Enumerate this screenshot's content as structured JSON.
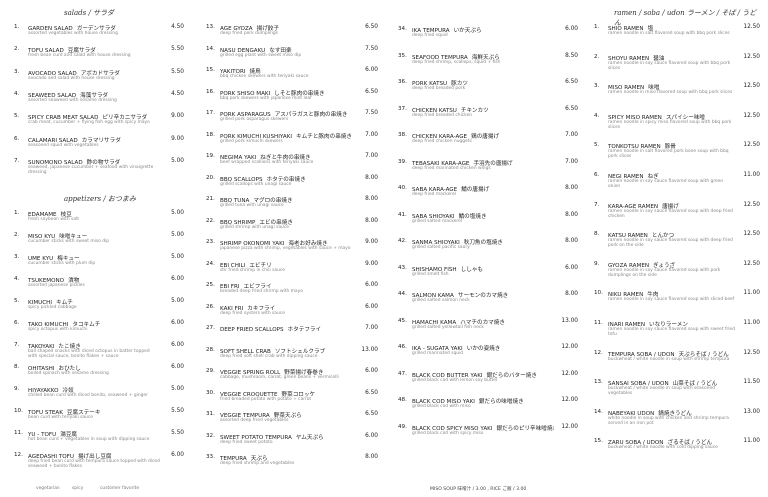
{
  "columns": [
    {
      "sections": [
        {
          "title": "salads / サラダ",
          "items": [
            {
              "number": "1.",
              "name": "GARDEN SALAD",
              "japanese": "ガーデンサラダ",
              "price": "4.50",
              "description": "assorted vegetables with house dressing"
            },
            {
              "number": "2.",
              "name": "TOFU SALAD",
              "japanese": "豆腐サラダ",
              "price": "5.50",
              "description": "fresh bean curd and salad with house dressing"
            },
            {
              "number": "3.",
              "name": "AVOCADO SALAD",
              "japanese": "アボカドサラダ",
              "price": "5.50",
              "description": "avocado and salad with house dressing"
            },
            {
              "number": "4.",
              "name": "SEAWEED SALAD",
              "japanese": "海藻サラダ",
              "price": "4.50",
              "description": "assorted seaweed with sesame dressing"
            },
            {
              "number": "5.",
              "name": "SPICY CRAB MEAT SALAD",
              "japanese": "ピリ辛カニサラダ",
              "price": "9.00",
              "description": "crab meat, cucumber + flying fish egg with spicy mayo"
            },
            {
              "number": "6.",
              "name": "CALAMARI SALAD",
              "japanese": "カラマリサラダ",
              "price": "9.00",
              "description": "seasoned squid with vegetables"
            },
            {
              "number": "7.",
              "name": "SUNOMONO SALAD",
              "japanese": "酢の物サラダ",
              "price": "5.00",
              "description": "seaweed, japanese cucumber + seafood with vinaigrette dressing"
            }
          ]
        },
        {
          "title": "appetizers / おつまみ",
          "items": [
            {
              "number": "1.",
              "name": "EDAMAME",
              "japanese": "枝豆",
              "price": "5.00",
              "description": "fresh soybean with salt"
            },
            {
              "number": "2.",
              "name": "MISO KYU",
              "japanese": "味噌キュー",
              "price": "5.00",
              "description": "cucumber sticks with sweet miso dip"
            },
            {
              "number": "3.",
              "name": "UME KYU",
              "japanese": "梅キュー",
              "price": "5.00",
              "description": "cucumber sticks with plum dip"
            },
            {
              "number": "4.",
              "name": "TSUKEMONO",
              "japanese": "漬物",
              "price": "6.00",
              "description": "assorted japanese pickles"
            },
            {
              "number": "5.",
              "name": "KIMUCHI",
              "japanese": "キムチ",
              "price": "5.00",
              "description": "spicy pickled cabbage"
            },
            {
              "number": "6.",
              "name": "TAKO KIMUCHI",
              "japanese": "タコキムチ",
              "price": "6.00",
              "description": "spicy octopus with kimuchi"
            },
            {
              "number": "7.",
              "name": "TAKOYAKI",
              "japanese": "たこ焼き",
              "price": "6.00",
              "description": "ball shaped snacks with diced octopus in batter topped with special sauce, bonito flakes + sauce"
            },
            {
              "number": "8.",
              "name": "OHITASHI",
              "japanese": "おひたし",
              "price": "6.00",
              "description": "boiled spinach with sesame dressing"
            },
            {
              "number": "9.",
              "name": "HIYAYAKKO",
              "japanese": "冷奴",
              "price": "5.00",
              "description": "chilled bean curd with diced bonito, seaweed + ginger"
            },
            {
              "number": "10.",
              "name": "TOFU STEAK",
              "japanese": "豆腐ステーキ",
              "price": "5.50",
              "description": "bean curd with teriyaki sauce"
            },
            {
              "number": "11.",
              "name": "YU - TOFU",
              "japanese": "湯豆腐",
              "price": "5.50",
              "description": "hot bean curd + vegetables in soup with dipping sauce"
            },
            {
              "number": "12.",
              "name": "AGEDASHI TOFU",
              "japanese": "揚げ出し豆腐",
              "price": "6.00",
              "description": "deep fried bean curd with tempura sauce topped with diced seaweed + bonito flakes"
            }
          ]
        }
      ]
    },
    {
      "sections": [
        {
          "items": [
            {
              "number": "13.",
              "name": "AGE GYOZA",
              "japanese": "揚げ餃子",
              "price": "6.50",
              "description": "deep fried pork dumplings"
            },
            {
              "number": "14.",
              "name": "NASU DENGAKU",
              "japanese": "なす田楽",
              "price": "7.50",
              "description": "grilled egg plant with sweet miso dip"
            },
            {
              "number": "15.",
              "name": "YAKITORI",
              "japanese": "焼鳥",
              "price": "6.00",
              "description": "bbq chicken skewers with teriyaki sauce"
            },
            {
              "number": "16.",
              "name": "PORK SHISO MAKI",
              "japanese": "しそと豚肉の串焼き",
              "price": "6.50",
              "description": "bbq pork skewers with japanese mint leaf"
            },
            {
              "number": "17.",
              "name": "PORK ASPARAGUS",
              "japanese": "アスパラガスと豚肉の串焼き",
              "price": "7.50",
              "description": "grilled pork asparagus skewers"
            },
            {
              "number": "18.",
              "name": "PORK KIMUCHI KUSHIYAKI",
              "japanese": "キムチと豚肉の串焼き",
              "price": "7.00",
              "description": "grilled pork kimuchi skewers"
            },
            {
              "number": "19.",
              "name": "NEGIMA YAKI",
              "japanese": "ねぎと牛肉の串焼き",
              "price": "7.00",
              "description": "beef wrapped scallions with teriyaki sauce"
            },
            {
              "number": "20.",
              "name": "BBQ SCALLOPS",
              "japanese": "ホタテの串焼き",
              "price": "8.00",
              "description": "grilled scallops with unagi sauce"
            },
            {
              "number": "21.",
              "name": "BBQ TUNA",
              "japanese": "マグロの串焼き",
              "price": "8.00",
              "description": "grilled tuna with unagi sauce"
            },
            {
              "number": "22.",
              "name": "BBQ SHRIMP",
              "japanese": "エビの串焼き",
              "price": "8.00",
              "description": "grilled shrimp with unagi sauce"
            },
            {
              "number": "23.",
              "name": "SHRIMP OKONOMI YAKI",
              "japanese": "海老お好み焼き",
              "price": "9.00",
              "description": "japanese pizza with shrimp, vegetables with sauce + mayo"
            },
            {
              "number": "24.",
              "name": "EBI CHILI",
              "japanese": "エビチリ",
              "price": "9.00",
              "description": "stir fried shrimp in chili sauce"
            },
            {
              "number": "25.",
              "name": "EBI FRI",
              "japanese": "エビフライ",
              "price": "6.00",
              "description": "breaded deep fried shrimp with mayo"
            },
            {
              "number": "26.",
              "name": "KAKI FRI",
              "japanese": "カキフライ",
              "price": "6.00",
              "description": "deep fried oysters with sauce"
            },
            {
              "number": "27.",
              "name": "DEEP FRIED SCALLOPS",
              "japanese": "ホタテフライ",
              "price": "7.00",
              "description": ""
            },
            {
              "number": "28.",
              "name": "SOFT SHELL CRAB",
              "japanese": "ソフトシェルクラブ",
              "price": "13.00",
              "description": "deep fried soft shell crab with dipping sauce"
            },
            {
              "number": "29.",
              "name": "VEGGIE SPRING ROLL",
              "japanese": "野菜揚げ春巻き",
              "price": "6.00",
              "description": "cabbage, mushroom, carrot, green beans + vermicelli"
            },
            {
              "number": "30.",
              "name": "VEGGIE CROQUETTE",
              "japanese": "野菜コロッケ",
              "price": "6.50",
              "description": "fried breaded potato with potato + carrot"
            },
            {
              "number": "31.",
              "name": "VEGGIE TEMPURA",
              "japanese": "野菜天ぷら",
              "price": "6.50",
              "description": "assorted deep fried vegetables"
            },
            {
              "number": "32.",
              "name": "SWEET POTATO TEMPURA",
              "japanese": "ヤム天ぷら",
              "price": "6.00",
              "description": "deep fried sweet potato"
            },
            {
              "number": "33.",
              "name": "TEMPURA",
              "japanese": "天ぷら",
              "price": "8.00",
              "description": "deep fried shrimp and vegetables"
            }
          ]
        }
      ]
    },
    {
      "sections": [
        {
          "items": [
            {
              "number": "34.",
              "name": "IKA TEMPURA",
              "japanese": "いか天ぷら",
              "price": "6.00",
              "description": "deep fried squid"
            },
            {
              "number": "35.",
              "name": "SEAFOOD TEMPURA",
              "japanese": "海鮮天ぷら",
              "price": "8.50",
              "description": "deep fried shrimp, scallops, squid + fish"
            },
            {
              "number": "36.",
              "name": "PORK KATSU",
              "japanese": "豚カツ",
              "price": "6.50",
              "description": "deep fried breaded pork"
            },
            {
              "number": "37.",
              "name": "CHICKEN KATSU",
              "japanese": "チキンカツ",
              "price": "6.50",
              "description": "deep fried breaded chicken"
            },
            {
              "number": "38.",
              "name": "CHICKEN KARA-AGE",
              "japanese": "鶏の唐揚げ",
              "price": "7.00",
              "description": "deep fried chicken nuggets"
            },
            {
              "number": "39.",
              "name": "TEBASAKI KARA-AGE",
              "japanese": "手羽先の唐揚げ",
              "price": "7.00",
              "description": "deep fried marinated chicken wings"
            },
            {
              "number": "40.",
              "name": "SABA KARA-AGE",
              "japanese": "鯖の唐揚げ",
              "price": "8.00",
              "description": "deep fried mackerel"
            },
            {
              "number": "41.",
              "name": "SABA SHIOYAKI",
              "japanese": "鯖の塩焼き",
              "price": "8.00",
              "description": "grilled salted mackerel"
            },
            {
              "number": "42.",
              "name": "SANMA SHIOYAKI",
              "japanese": "秋刀魚の塩焼き",
              "price": "8.00",
              "description": "grilled salted pacific saury"
            },
            {
              "number": "43.",
              "name": "SHISHAMO FISH",
              "japanese": "ししゃも",
              "price": "6.00",
              "description": "grilled smelt fish"
            },
            {
              "number": "44.",
              "name": "SALMON KAMA",
              "japanese": "サーモンのカマ焼き",
              "price": "8.00",
              "description": "grilled salted salmon neck"
            },
            {
              "number": "45.",
              "name": "HAMACHI KAMA",
              "japanese": "ハマチのカマ焼き",
              "price": "13.00",
              "description": "grilled salted yellowtail fish neck"
            },
            {
              "number": "46.",
              "name": "IKA - SUGATA YAKI",
              "japanese": "いかの姿焼き",
              "price": "12.00",
              "description": "grilled marinated squid"
            },
            {
              "number": "47.",
              "name": "BLACK COD BUTTER YAKI",
              "japanese": "銀だらのバター焼き",
              "price": "12.00",
              "description": "grilled black cod with lemon soy butter"
            },
            {
              "number": "48.",
              "name": "BLACK COD MISO YAKI",
              "japanese": "銀だらの味噌焼き",
              "price": "12.00",
              "description": "grilled black cod with miso"
            },
            {
              "number": "49.",
              "name": "BLACK COD SPICY MISO YAKI",
              "japanese": "銀だらのピリ辛味噌焼き",
              "price": "12.00",
              "description": "grilled black cod with spicy miso"
            }
          ]
        }
      ]
    },
    {
      "sections": [
        {
          "title": "ramen / soba / udon  ラーメン / そば / うどん",
          "items": [
            {
              "number": "1.",
              "name": "SHIO RAMEN",
              "japanese": "塩",
              "price": "12.50",
              "description": "ramen noodle in salt flavored soup with bbq pork slices"
            },
            {
              "number": "2.",
              "name": "SHOYU RAMEN",
              "japanese": "醤油",
              "price": "12.50",
              "description": "ramen noodle in soy sauce flavored soup with bbq pork slices"
            },
            {
              "number": "3.",
              "name": "MISO RAMEN",
              "japanese": "味噌",
              "price": "12.50",
              "description": "ramen noodle in miso flavored soup with bbq pork slices"
            },
            {
              "number": "4.",
              "name": "SPICY MISO RAMEN",
              "japanese": "スパイシー味噌",
              "price": "12.50",
              "description": "ramen noodle in spicy miso flavored soup with bbq pork slices"
            },
            {
              "number": "5.",
              "name": "TONKOTSU RAMEN",
              "japanese": "豚骨",
              "price": "12.50",
              "description": "ramen noodle in salt flavored pork bone soup with bbq pork slices"
            },
            {
              "number": "6.",
              "name": "NEGI RAMEN",
              "japanese": "ねぎ",
              "price": "11.00",
              "description": "ramen noodle in soy sauce flavored soup with green onion"
            },
            {
              "number": "7.",
              "name": "KARA-AGE RAMEN",
              "japanese": "唐揚げ",
              "price": "12.50",
              "description": "ramen noodle in soy sauce flavored soup with deep fried chicken"
            },
            {
              "number": "8.",
              "name": "KATSU RAMEN",
              "japanese": "とんかつ",
              "price": "12.50",
              "description": "ramen noodle in soy sauce flavored soup with deep fried pork on the side"
            },
            {
              "number": "9.",
              "name": "GYOZA RAMEN",
              "japanese": "ぎょうざ",
              "price": "12.50",
              "description": "ramen noodle in soy sauce flavored soup with pork dumplings on the side"
            },
            {
              "number": "10.",
              "name": "NIKU RAMEN",
              "japanese": "牛肉",
              "price": "11.00",
              "description": "ramen noodle in soy sauce flavored soup with sliced beef"
            },
            {
              "number": "11.",
              "name": "INARI RAMEN",
              "japanese": "いなりラーメン",
              "price": "11.00",
              "description": "ramen noodle in soy sauce flavored soup with sweet fried tofu"
            },
            {
              "number": "12.",
              "name": "TEMPURA SOBA / UDON",
              "japanese": "天ぷらそば / うどん",
              "price": "12.50",
              "description": "buckwheat / white noodle in soup with shrimp tempura"
            },
            {
              "number": "13.",
              "name": "SANSAI SOBA / UDON",
              "japanese": "山菜そば / うどん",
              "price": "11.50",
              "description": "buckwheat / white noodle in soup with seasoned vegetables"
            },
            {
              "number": "14.",
              "name": "NABEYAKI UDON",
              "japanese": "鍋焼きうどん",
              "price": "13.00",
              "description": "white noodle in soup with chicken and shrimp tempura served in an iron pot"
            },
            {
              "number": "15.",
              "name": "ZARU SOBA / UDON",
              "japanese": "ざるそば / うどん",
              "price": "11.00",
              "description": "buckwheat / white noodle with cold dipping sauce"
            }
          ]
        }
      ]
    }
  ],
  "footer": "MISO SOUP 味噌汁 / 3.00 , RICE ご飯 / 3.00",
  "legend": [
    "vegetarian",
    "spicy",
    "customer favorite"
  ]
}
